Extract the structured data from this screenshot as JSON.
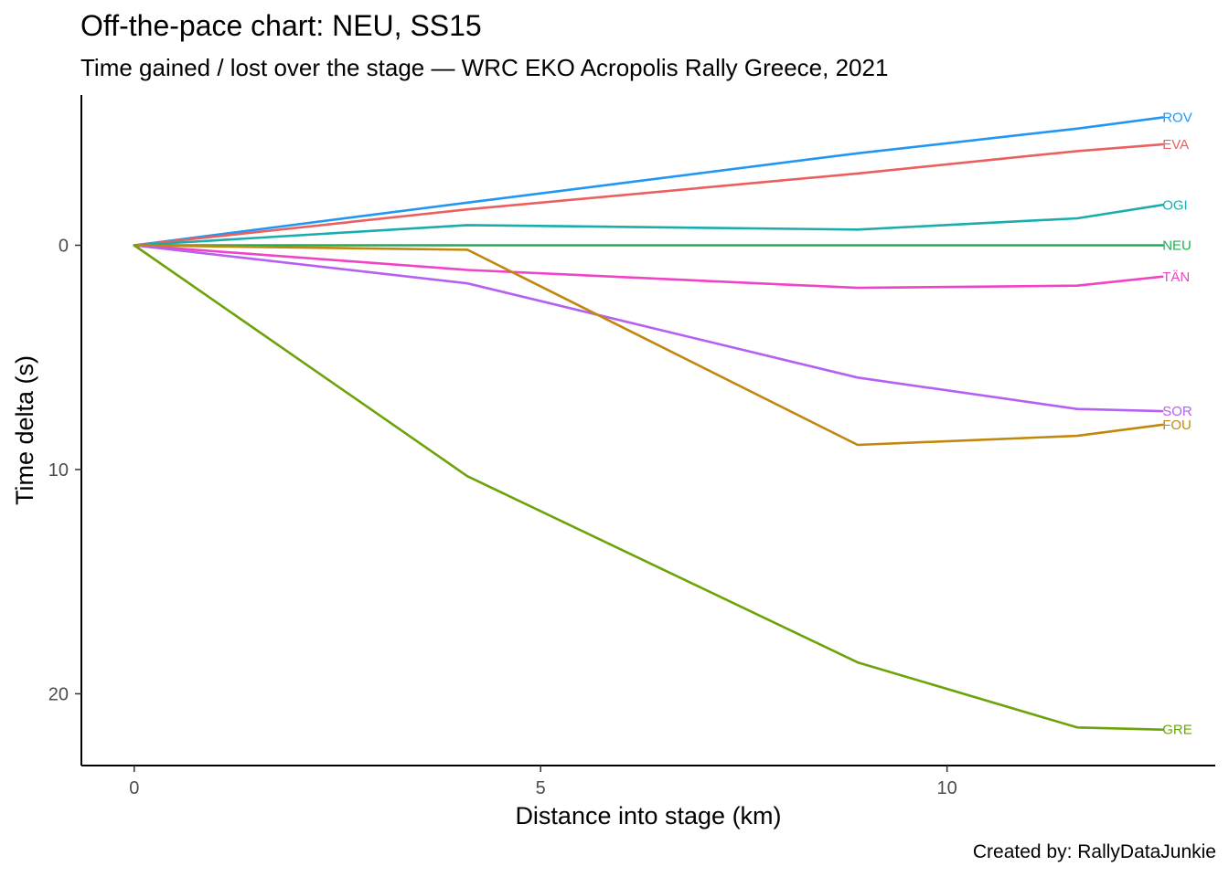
{
  "title": "Off-the-pace chart: NEU, SS15",
  "subtitle": "Time gained / lost over the stage — WRC EKO Acropolis Rally Greece, 2021",
  "caption": "Created by: RallyDataJunkie",
  "chart_data": {
    "type": "line",
    "title": "Off-the-pace chart: NEU, SS15",
    "subtitle": "Time gained / lost over the stage — WRC EKO Acropolis Rally Greece, 2021",
    "xlabel": "Distance into stage (km)",
    "ylabel": "Time delta (s)",
    "xlim": [
      -0.65,
      13.3
    ],
    "ylim": [
      -6.7,
      23.2
    ],
    "y_reversed": true,
    "x_ticks": [
      "0",
      "5",
      "10"
    ],
    "x_tick_values": [
      0,
      5,
      10
    ],
    "y_ticks": [
      "0",
      "10",
      "20"
    ],
    "y_tick_values": [
      0,
      10,
      20
    ],
    "grid": false,
    "legend": "end-of-line labels",
    "x": [
      0,
      4.1,
      8.9,
      11.6,
      12.65
    ],
    "series": [
      {
        "name": "ROV",
        "color": "#2196F3",
        "values": [
          0,
          -1.9,
          -4.1,
          -5.2,
          -5.7
        ]
      },
      {
        "name": "EVA",
        "color": "#EC5F5F",
        "values": [
          0,
          -1.6,
          -3.2,
          -4.2,
          -4.5
        ]
      },
      {
        "name": "OGI",
        "color": "#1AADAD",
        "values": [
          0,
          -0.9,
          -0.7,
          -1.2,
          -1.8
        ]
      },
      {
        "name": "NEU",
        "color": "#1FAE4F",
        "values": [
          0,
          0,
          0,
          0,
          0
        ]
      },
      {
        "name": "TÄN",
        "color": "#F043C6",
        "values": [
          0,
          1.1,
          1.9,
          1.8,
          1.4
        ]
      },
      {
        "name": "SOR",
        "color": "#B660F3",
        "values": [
          0,
          1.7,
          5.9,
          7.3,
          7.4
        ]
      },
      {
        "name": "FOU",
        "color": "#C0880C",
        "values": [
          0,
          0.2,
          8.9,
          8.5,
          8.0
        ]
      },
      {
        "name": "GRE",
        "color": "#6DA30A",
        "values": [
          0,
          10.3,
          18.6,
          21.5,
          21.6
        ]
      }
    ]
  }
}
